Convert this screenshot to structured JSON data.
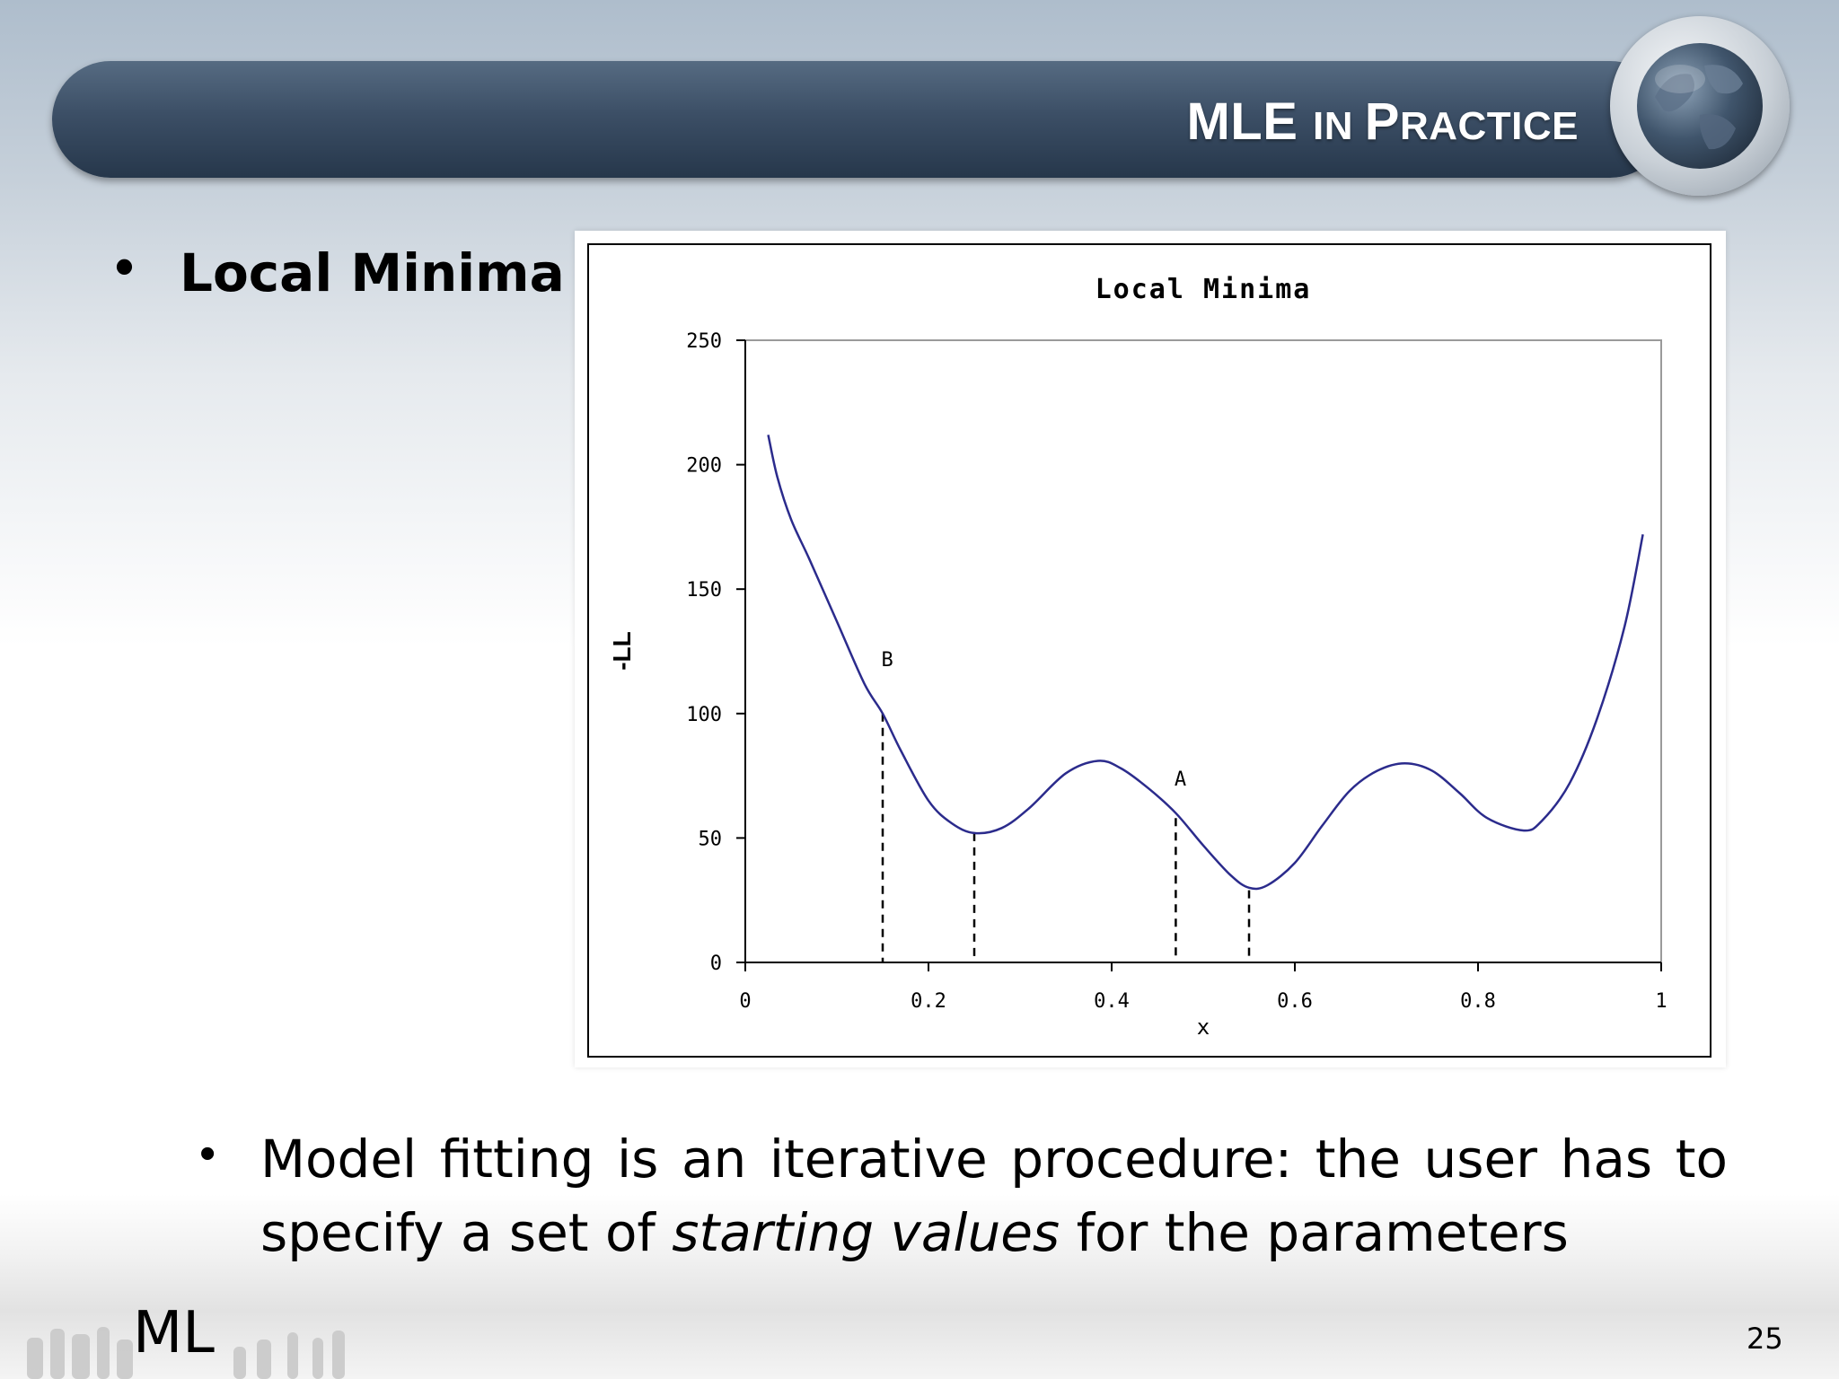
{
  "slide": {
    "title_main": "MLE ",
    "title_small1": "IN ",
    "title_p": "P",
    "title_small2": "RACTICE",
    "bullet1": "Local Minima",
    "bullet2_part1": "Model fitting is an iterative procedure: the user has to specify a set of ",
    "bullet2_italic": "starting values",
    "bullet2_part2": " for the parameters",
    "footer_logo": "ML",
    "page_number": "25"
  },
  "chart_data": {
    "type": "line",
    "title": "Local Minima",
    "xlabel": "x",
    "ylabel": "-LL",
    "xlim": [
      0,
      1
    ],
    "ylim": [
      0,
      250
    ],
    "x_ticks": [
      "0",
      "0.2",
      "0.4",
      "0.6",
      "0.8",
      "1"
    ],
    "y_ticks": [
      "0",
      "50",
      "100",
      "150",
      "200",
      "250"
    ],
    "series": [
      {
        "color": "#2b2b8c",
        "x": [
          0.025,
          0.035,
          0.05,
          0.07,
          0.1,
          0.13,
          0.15,
          0.17,
          0.2,
          0.225,
          0.25,
          0.28,
          0.31,
          0.35,
          0.385,
          0.41,
          0.44,
          0.47,
          0.5,
          0.53,
          0.55,
          0.57,
          0.6,
          0.63,
          0.66,
          0.69,
          0.72,
          0.75,
          0.78,
          0.81,
          0.85,
          0.87,
          0.9,
          0.93,
          0.96,
          0.98
        ],
        "y": [
          212,
          195,
          178,
          162,
          137,
          112,
          100,
          85,
          65,
          56,
          52,
          54,
          62,
          76,
          81,
          78,
          70,
          60,
          47,
          35,
          30,
          31,
          40,
          55,
          69,
          77,
          80,
          77,
          68,
          58,
          53,
          57,
          72,
          98,
          135,
          172
        ]
      }
    ],
    "vlines": [
      {
        "x": 0.15,
        "y": 100
      },
      {
        "x": 0.25,
        "y": 52
      },
      {
        "x": 0.47,
        "y": 58
      },
      {
        "x": 0.55,
        "y": 29
      }
    ],
    "annotations": [
      {
        "text": "B",
        "x": 0.155,
        "y": 119
      },
      {
        "text": "A",
        "x": 0.475,
        "y": 71
      }
    ]
  }
}
